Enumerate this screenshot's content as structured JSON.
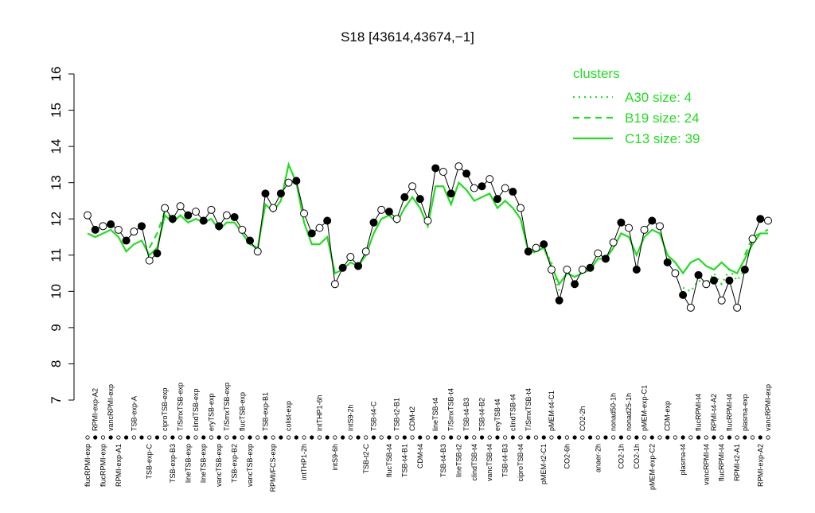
{
  "chart_data": {
    "type": "line",
    "title": "S18 [43614,43674,−1]",
    "categories": [
      "flucRPMI-exp",
      "RPMI-exp-A2",
      "flucRPMI-exp",
      "vancRPMI-exp",
      "RPMI-exp-A1",
      null,
      "TSB-exp-A",
      null,
      "TSB-exp-C",
      null,
      "ciproTSB-exp",
      "TSB-exp-B3",
      "T/SmxTSB-exp",
      "lineTSB-exp",
      "clindTSB-exp",
      "lineTSB-exp",
      "eryTSB-exp",
      "vancTSB-exp",
      "T/SmxTSB-exp",
      "TSB-exp-B2",
      "flucTSB-exp",
      "vancTSB-exp",
      null,
      "TSB-exp-B1",
      "RPMI/FCS-exp",
      null,
      "colist-exp",
      null,
      "intTHP1-2h",
      null,
      "intTHP1-6h",
      null,
      "intS9-6h",
      null,
      "intS9-2h",
      null,
      "TSB-t2-C",
      "TSB-t4-C",
      null,
      "flucTSB-t4",
      "TSB-t2-B1",
      "TSB-t4-B1",
      "CDM-t2",
      "CDM-t4",
      null,
      "lineTSB-t4",
      "TSB-t4-B3",
      "T/SmxTSB-t4",
      "lineTSB-t2",
      "TSB-t4-B3",
      "clindTSB-t4",
      "TSB-t4-B2",
      "vancTSB-t4",
      "eryTSB-t4",
      "TSB-t4-B3",
      "clindTSB-t4",
      "ciproTSB-t4",
      "T/SmxTSB-t4",
      null,
      "pMEM-t2-C1",
      "pMEM-t4-C1",
      null,
      "CO2-6h",
      null,
      "CO2-2h",
      null,
      "anaer-2h",
      null,
      "nonad50-1h",
      "CO2-1h",
      "nonad25-1h",
      "CO2-1h",
      "pMEM-exp-C1",
      "pMEM-exp-C2",
      null,
      "CDM-exp",
      null,
      "plasma-t4",
      null,
      "flucRPMI-t4",
      "vancRPMI-t4",
      "RPMI-t4-A2",
      "flucRPMI-t4",
      "flucRPMI-t4",
      "RPMI-t2-A1",
      "plasma-exp",
      null,
      "RPMI-exp-A2",
      "vancRPMI-exp"
    ],
    "values": [
      12.1,
      11.7,
      11.8,
      11.85,
      11.7,
      11.4,
      11.65,
      11.8,
      10.85,
      11.05,
      12.3,
      12.0,
      12.35,
      12.1,
      12.2,
      11.95,
      12.25,
      11.8,
      12.1,
      12.05,
      11.7,
      11.4,
      11.1,
      12.7,
      12.3,
      12.7,
      13.0,
      13.05,
      12.15,
      11.6,
      11.75,
      11.95,
      10.2,
      10.65,
      10.95,
      10.7,
      11.1,
      11.9,
      12.25,
      12.2,
      12.0,
      12.6,
      12.9,
      12.55,
      11.95,
      13.4,
      13.3,
      12.7,
      13.45,
      13.25,
      12.85,
      12.9,
      13.1,
      12.55,
      12.85,
      12.75,
      12.3,
      11.1,
      11.2,
      11.3,
      10.6,
      9.75,
      10.6,
      10.2,
      10.6,
      10.65,
      11.05,
      10.9,
      11.35,
      11.9,
      11.75,
      10.6,
      11.7,
      11.95,
      11.8,
      10.8,
      10.5,
      9.9,
      9.55,
      10.45,
      10.2,
      10.3,
      9.75,
      10.3,
      9.55,
      10.6,
      11.45,
      12.0,
      11.95
    ],
    "color": "#000000",
    "legend_title": "clusters",
    "series": [
      {
        "name": "A30 size: 4",
        "color": "#22dd22",
        "style": "dotted",
        "values": [
          null,
          null,
          null,
          null,
          null,
          null,
          null,
          null,
          null,
          null,
          null,
          null,
          null,
          null,
          null,
          null,
          null,
          null,
          null,
          null,
          null,
          null,
          null,
          null,
          null,
          null,
          null,
          null,
          null,
          null,
          null,
          null,
          null,
          null,
          null,
          null,
          null,
          null,
          null,
          null,
          null,
          null,
          null,
          null,
          null,
          null,
          null,
          null,
          null,
          null,
          null,
          null,
          null,
          null,
          null,
          null,
          null,
          11.0,
          11.1,
          11.2,
          10.8,
          10.0,
          null,
          null,
          null,
          null,
          null,
          null,
          null,
          null,
          null,
          null,
          null,
          null,
          null,
          null,
          null,
          10.1,
          10.0,
          10.3,
          10.2,
          10.5,
          10.2,
          10.6,
          10.3,
          10.6,
          null,
          null,
          null
        ]
      },
      {
        "name": "B19 size: 24",
        "color": "#22dd22",
        "style": "dashed",
        "values": [
          null,
          null,
          null,
          null,
          null,
          null,
          null,
          null,
          11.2,
          11.6,
          12.2,
          12.0,
          null,
          null,
          null,
          null,
          null,
          null,
          null,
          null,
          null,
          null,
          null,
          null,
          null,
          null,
          null,
          null,
          null,
          null,
          null,
          null,
          null,
          null,
          null,
          null,
          null,
          null,
          null,
          null,
          null,
          null,
          null,
          null,
          null,
          null,
          null,
          null,
          null,
          null,
          null,
          null,
          null,
          null,
          null,
          null,
          null,
          null,
          null,
          null,
          null,
          null,
          null,
          null,
          null,
          null,
          null,
          null,
          null,
          null,
          null,
          null,
          null,
          null,
          null,
          null,
          null,
          null,
          null,
          null,
          null,
          null,
          null,
          null,
          null,
          11.0,
          11.5,
          11.6,
          11.7
        ]
      },
      {
        "name": "C13 size: 39",
        "color": "#22dd22",
        "style": "solid",
        "values": [
          11.6,
          11.5,
          11.6,
          11.7,
          11.5,
          11.1,
          11.3,
          11.4,
          11.0,
          11.2,
          12.1,
          11.9,
          12.1,
          11.9,
          12.0,
          11.9,
          12.0,
          11.7,
          11.9,
          11.9,
          11.6,
          11.3,
          11.2,
          12.4,
          12.2,
          12.5,
          13.5,
          13.0,
          11.9,
          11.3,
          11.3,
          11.5,
          10.5,
          10.6,
          10.8,
          10.7,
          11.0,
          11.6,
          12.0,
          12.1,
          11.9,
          12.3,
          12.6,
          12.3,
          11.8,
          12.9,
          12.9,
          12.4,
          13.0,
          12.8,
          12.5,
          12.6,
          12.7,
          12.3,
          12.5,
          12.3,
          12.0,
          11.1,
          11.1,
          11.2,
          10.7,
          10.2,
          10.5,
          10.4,
          10.5,
          10.6,
          10.9,
          10.9,
          11.2,
          11.6,
          11.5,
          11.0,
          11.5,
          11.7,
          11.6,
          11.0,
          10.8,
          10.5,
          10.8,
          10.9,
          10.7,
          10.6,
          10.8,
          10.6,
          10.5,
          10.9,
          11.3,
          11.6,
          11.6
        ]
      }
    ],
    "ylim": [
      7,
      16
    ],
    "yticks": [
      7,
      8,
      9,
      10,
      11,
      12,
      13,
      14,
      15,
      16
    ],
    "legend": "top-right"
  }
}
